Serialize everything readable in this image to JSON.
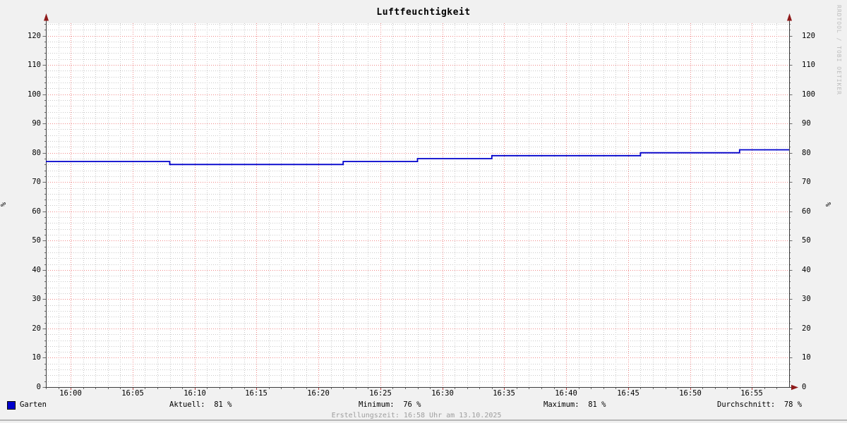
{
  "header": {
    "title": "Luftfeuchtigkeit"
  },
  "watermark": "RRDTOOL / TOBI OETIKER",
  "footer": {
    "created": "Erstellungszeit: 16:58 Uhr am 13.10.2025"
  },
  "legend": {
    "series_label": "Garten",
    "swatch_color": "#0000cc"
  },
  "stats": {
    "aktuell": "Aktuell:  81 %",
    "minimum": "Minimum:  76 %",
    "maximum": "Maximum:  81 %",
    "durchschnitt": "Durchschnitt:  78 %"
  },
  "colors": {
    "background": "#f1f1f1",
    "plot_background": "#ffffff",
    "grid_minor": "#c9c9c9",
    "grid_major": "#f08888",
    "axis": "#3c3c3c",
    "tick_minor": "#6a6a6a",
    "tick_major": "#b04040",
    "arrow": "#8f1a1a",
    "series_garten": "#0000cc",
    "watermark_text": "#bdbdbd",
    "footer_text": "#9e9e9e"
  },
  "chart_data": {
    "type": "line",
    "title": "Luftfeuchtigkeit",
    "xlabel": "",
    "ylabel": "%",
    "legend_position": "bottom-left",
    "grid": "on",
    "x_axis": {
      "start_time": "15:58",
      "end_time": "16:58",
      "minutes_range": [
        -2,
        58
      ],
      "major_tick_minutes": 5,
      "minor_tick_minutes": 1
    },
    "y_axis": {
      "min": 0,
      "drawn_max": 124,
      "major_step": 10,
      "minor_step": 2,
      "tick_labels": [
        0,
        10,
        20,
        30,
        40,
        50,
        60,
        70,
        80,
        90,
        100,
        110,
        120
      ]
    },
    "x_ticks": [
      {
        "t": 0,
        "label": "16:00"
      },
      {
        "t": 5,
        "label": "16:05"
      },
      {
        "t": 10,
        "label": "16:10"
      },
      {
        "t": 15,
        "label": "16:15"
      },
      {
        "t": 20,
        "label": "16:20"
      },
      {
        "t": 25,
        "label": "16:25"
      },
      {
        "t": 30,
        "label": "16:30"
      },
      {
        "t": 35,
        "label": "16:35"
      },
      {
        "t": 40,
        "label": "16:40"
      },
      {
        "t": 45,
        "label": "16:45"
      },
      {
        "t": 50,
        "label": "16:50"
      },
      {
        "t": 55,
        "label": "16:55"
      }
    ],
    "series": [
      {
        "name": "Garten",
        "color": "#0000cc",
        "style": "step-after",
        "unit": "%",
        "points_minutes_percent": [
          [
            -2,
            77
          ],
          [
            8,
            76
          ],
          [
            22,
            77
          ],
          [
            28,
            78
          ],
          [
            34,
            79
          ],
          [
            46,
            80
          ],
          [
            54,
            81
          ],
          [
            58,
            81
          ]
        ]
      }
    ],
    "stats": {
      "current_percent": 81,
      "min_percent": 76,
      "max_percent": 81,
      "avg_percent": 78
    }
  }
}
